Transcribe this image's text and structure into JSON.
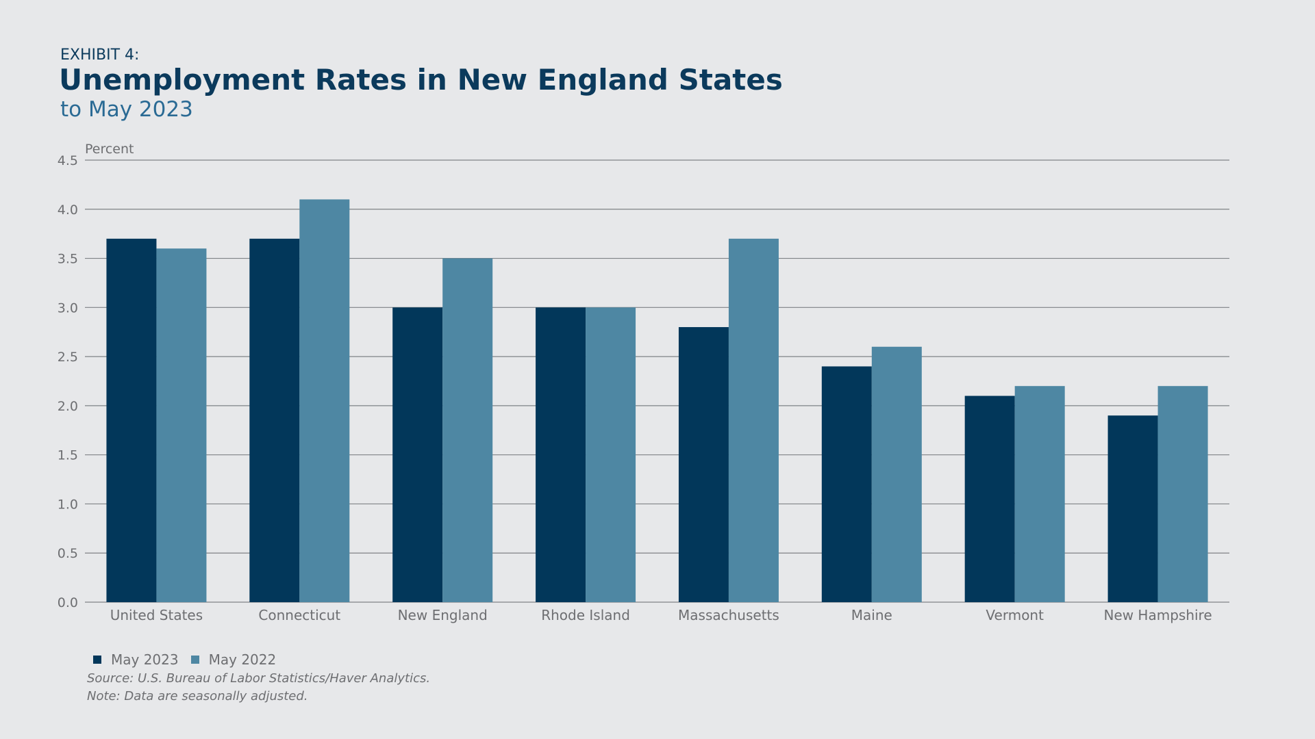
{
  "exhibit_label": "EXHIBIT 4:",
  "title": "Unemployment Rates in New England States",
  "subtitle": "to May 2023",
  "source": "Source: U.S. Bureau of Labor Statistics/Haver Analytics.",
  "note": "Note: Data are seasonally adjusted.",
  "colors": {
    "background": "#e7e8ea",
    "may_2023": "#02375a",
    "may_2022": "#4e87a3",
    "gridline": "#7f8286",
    "text": "#6d6e71",
    "title": "#0b3a5c"
  },
  "chart_data": {
    "type": "bar",
    "title": "Unemployment Rates in New England States",
    "subtitle": "to May 2023",
    "ylabel": "Percent",
    "xlabel": "",
    "categories": [
      "United States",
      "Connecticut",
      "New England",
      "Rhode Island",
      "Massachusetts",
      "Maine",
      "Vermont",
      "New Hampshire"
    ],
    "series": [
      {
        "name": "May 2023",
        "color": "#02375a",
        "values": [
          3.7,
          3.7,
          3.0,
          3.0,
          2.8,
          2.4,
          2.1,
          1.9
        ]
      },
      {
        "name": "May 2022",
        "color": "#4e87a3",
        "values": [
          3.6,
          4.1,
          3.5,
          3.0,
          3.7,
          2.6,
          2.2,
          2.2
        ]
      }
    ],
    "ylim": [
      0,
      4.5
    ],
    "yticks": [
      "0.0",
      "0.5",
      "1.0",
      "1.5",
      "2.0",
      "2.5",
      "3.0",
      "3.5",
      "4.0",
      "4.5"
    ],
    "grid": true,
    "legend_position": "bottom-left"
  }
}
